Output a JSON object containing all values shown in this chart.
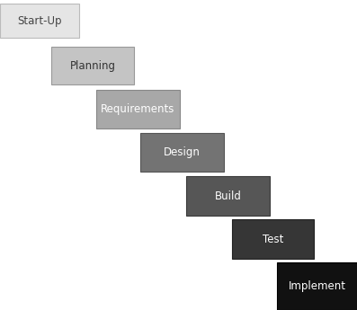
{
  "steps": [
    {
      "label": "Start-Up",
      "color": "#e5e5e5",
      "text_color": "#444444",
      "border_color": "#bbbbbb"
    },
    {
      "label": "Planning",
      "color": "#c4c4c4",
      "text_color": "#333333",
      "border_color": "#999999"
    },
    {
      "label": "Requirements",
      "color": "#a8a8a8",
      "text_color": "#ffffff",
      "border_color": "#888888"
    },
    {
      "label": "Design",
      "color": "#737373",
      "text_color": "#ffffff",
      "border_color": "#555555"
    },
    {
      "label": "Build",
      "color": "#565656",
      "text_color": "#ffffff",
      "border_color": "#3a3a3a"
    },
    {
      "label": "Test",
      "color": "#363636",
      "text_color": "#ffffff",
      "border_color": "#222222"
    },
    {
      "label": "Implement",
      "color": "#111111",
      "text_color": "#ffffff",
      "border_color": "#000000"
    }
  ],
  "fig_width": 3.97,
  "fig_height": 3.45,
  "dpi": 100,
  "background_color": "#ffffff",
  "font_size": 8.5,
  "font_family": "DejaVu Sans"
}
